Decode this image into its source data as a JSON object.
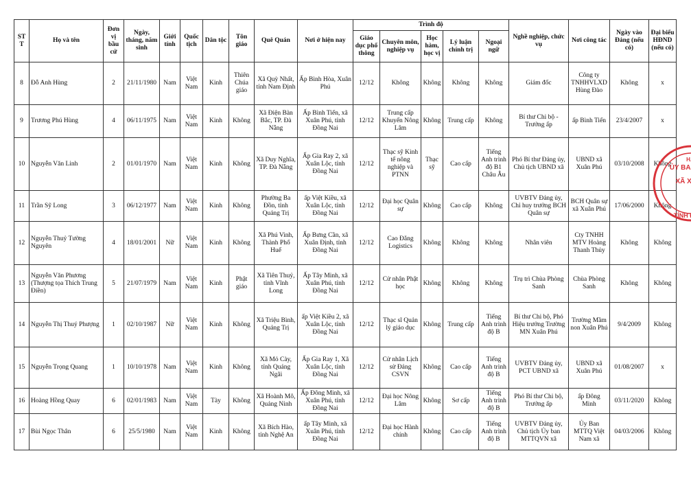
{
  "header": {
    "group": "Trình độ",
    "columns": [
      "STT",
      "Họ và tên",
      "Đơn vị bầu cử",
      "Ngày, tháng, năm sinh",
      "Giới tính",
      "Quốc tịch",
      "Dân tộc",
      "Tôn giáo",
      "Quê Quán",
      "Nơi ở hiện nay",
      "Giáo dục phổ thông",
      "Chuyên môn, nghiệp vụ",
      "Học hàm, học vị",
      "Lý luận chính trị",
      "Ngoại ngữ",
      "Nghề nghiệp, chức vụ",
      "Nơi công tác",
      "Ngày vào Đảng (nếu có)",
      "Đại biểu HĐND (nếu có)"
    ]
  },
  "table": {
    "rows": [
      [
        "8",
        "Đỗ Anh Hùng",
        "2",
        "21/11/1980",
        "Nam",
        "Việt Nam",
        "Kinh",
        "Thiên Chúa giáo",
        "Xã Quỳ Nhất, tỉnh Nam Định",
        "Ấp Bình Hòa, Xuân Phú",
        "12/12",
        "Không",
        "Không",
        "Không",
        "Không",
        "Giám đốc",
        "Công ty TNHHVLXD Hùng Đào",
        "Không",
        "x"
      ],
      [
        "9",
        "Trương Phú Hùng",
        "4",
        "06/11/1975",
        "Nam",
        "Việt Nam",
        "Kinh",
        "Không",
        "Xã Điện Bàn Bắc, TP. Đà Nẵng",
        "Ấp Bình Tiến, xã Xuân Phú, tỉnh Đồng Nai",
        "12/12",
        "Trung cấp Khuyến Nông Lâm",
        "Không",
        "Trung cấp",
        "Không",
        "Bí thư Chi bộ - Trưởng ấp",
        "ấp Bình Tiến",
        "23/4/2007",
        "x"
      ],
      [
        "10",
        "Nguyễn Văn Linh",
        "2",
        "01/01/1970",
        "Nam",
        "Việt Nam",
        "Kinh",
        "Không",
        "Xã Duy Nghĩa, TP. Đà Nẵng",
        "Ấp Gia Ray 2, xã Xuân Lộc, tỉnh Đồng Nai",
        "12/12",
        "Thạc sỹ Kinh tế nông nghiệp và PTNN",
        "Thạc sỹ",
        "Cao cấp",
        "Tiếng Anh trình độ B1 Châu Âu",
        "Phó Bí thư Đảng ủy, Chủ tịch UBND xã",
        "UBND xã Xuân Phú",
        "03/10/2008",
        "Không"
      ],
      [
        "11",
        "Trần Sỹ Long",
        "3",
        "06/12/1977",
        "Nam",
        "Việt Nam",
        "Kinh",
        "Không",
        "Phường Ba Đồn, tỉnh Quảng Trị",
        "ấp Việt Kiều, xã Xuân Lộc, tỉnh Đồng Nai",
        "12/12",
        "Đại học Quân sự",
        "Không",
        "Cao cấp",
        "Không",
        "UVBTV Đảng ủy, Chỉ huy trưởng BCH Quân sự",
        "BCH Quân sự xã Xuân Phú",
        "17/06/2000",
        "Không"
      ],
      [
        "12",
        "Nguyễn Thuỷ Tường Nguyên",
        "4",
        "18/01/2001",
        "Nữ",
        "Việt Nam",
        "Kinh",
        "Không",
        "Xã Phú Vinh, Thành Phố Huế",
        "Ấp Bưng Cần, xã Xuân Định, tỉnh Đồng Nai",
        "12/12",
        "Cao Đẳng Logistics",
        "Không",
        "Không",
        "Không",
        "Nhân viên",
        "Cty TNHH MTV Hoàng Thanh Thủy",
        "Không",
        "Không"
      ],
      [
        "13",
        "Nguyễn Văn Phương (Thượng tọa Thích Trung Điền)",
        "5",
        "21/07/1979",
        "Nam",
        "Việt Nam",
        "Kinh",
        "Phật giáo",
        "Xã Tiên Thuỷ, tỉnh Vĩnh Long",
        "Ấp Tây Minh, xã Xuân Phú, tỉnh Đồng Nai",
        "12/12",
        "Cử nhân Phật học",
        "Không",
        "Không",
        "Không",
        "Trụ trì Chùa Phòng Sanh",
        "Chùa Phòng Sanh",
        "Không",
        "Không"
      ],
      [
        "14",
        "Nguyễn Thị Thuý Phượng",
        "1",
        "02/10/1987",
        "Nữ",
        "Việt Nam",
        "Kinh",
        "Không",
        "Xã Triệu Bình, Quảng Trị",
        "ấp Việt Kiều 2, xã Xuân Lộc, tỉnh Đồng Nai",
        "12/12",
        "Thạc sĩ Quản lý giáo dục",
        "Không",
        "Trung cấp",
        "Tiếng Anh trình độ B",
        "Bí thư Chi bộ, Phó Hiệu trưởng Trường MN Xuân Phú",
        "Trường Mầm non Xuân Phú",
        "9/4/2009",
        "Không"
      ],
      [
        "15",
        "Nguyễn Trọng Quang",
        "1",
        "10/10/1978",
        "Nam",
        "Việt Nam",
        "Kinh",
        "Không",
        "Xã Mỏ Cày, tỉnh Quảng Ngãi",
        "Ấp Gia Ray 1, Xã Xuân Lộc, tỉnh Đồng Nai",
        "12/12",
        "Cử nhân Lịch sử Đảng CSVN",
        "Không",
        "Cao cấp",
        "Tiếng Anh trình độ B",
        "UVBTV Đảng ủy, PCT UBND xã",
        "UBND xã Xuân Phú",
        "01/08/2007",
        "x"
      ],
      [
        "16",
        "Hoàng Hồng Quay",
        "6",
        "02/01/1983",
        "Nam",
        "Việt Nam",
        "Tày",
        "Không",
        "Xã Hoành Mô, Quảng Ninh",
        "Ấp Đông Minh, xã Xuân Phú, tỉnh Đồng Nai",
        "12/12",
        "Đại học Nông Lâm",
        "Không",
        "Sơ cấp",
        "Tiếng Anh trình độ B",
        "Phó Bí thư Chi bộ, Trưởng ấp",
        "ấp Đông Minh",
        "03/11/2020",
        "Không"
      ],
      [
        "17",
        "Bùi Ngọc Thân",
        "6",
        "25/5/1980",
        "Nam",
        "Việt Nam",
        "Kinh",
        "Không",
        "Xã Bích Hào, tỉnh Nghệ An",
        "ấp Tây Minh, xã Xuân Phú, tỉnh Đồng Nai",
        "12/12",
        "Đại học Hành chính",
        "Không",
        "Cao cấp",
        "Tiếng Anh trình độ B",
        "UVBTV Đảng ủy, Chủ tịch Ủy ban MTTQVN xã",
        "Ủy Ban MTTQ Việt Nam xã",
        "04/03/2006",
        "Không"
      ]
    ]
  },
  "stamp": {
    "lines": [
      "ỦY BAN BẦU",
      "XÃ XUÂN",
      "H.C",
      "TỈNH ĐỒNG"
    ]
  }
}
